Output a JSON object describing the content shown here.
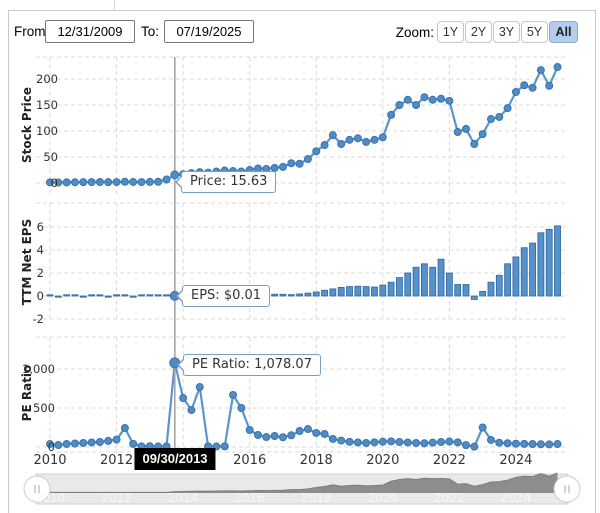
{
  "toolbar": {
    "from_label": "From:",
    "from_value": "12/31/2009",
    "to_label": "To:",
    "to_value": "07/19/2025",
    "zoom_label": "Zoom:",
    "zoom_buttons": [
      {
        "label": "1Y",
        "active": false
      },
      {
        "label": "2Y",
        "active": false
      },
      {
        "label": "3Y",
        "active": false
      },
      {
        "label": "5Y",
        "active": false
      },
      {
        "label": "All",
        "active": true
      }
    ]
  },
  "tooltips": {
    "price": "Price: 15.63",
    "eps": "EPS: $0.01",
    "pe": "PE Ratio: 1,078.07",
    "date": "09/30/2013"
  },
  "highlight": {
    "index": 15,
    "date": "09/30/2013"
  },
  "xaxis": {
    "years": [
      2010,
      2012,
      2014,
      2016,
      2018,
      2020,
      2022,
      2024
    ],
    "year_labels": [
      "2010",
      "2012",
      "2014",
      "2016",
      "2018",
      "2020",
      "2022",
      "2024"
    ],
    "x_range": [
      "12/31/2009",
      "07/19/2025"
    ],
    "frequency": "quarterly"
  },
  "chart_data": [
    {
      "type": "line",
      "ylabel": "Stock Price",
      "ytick_values": [
        0,
        50,
        100,
        150,
        200
      ],
      "ytick_labels": [
        "0",
        "50",
        "100",
        "150",
        "200"
      ],
      "ylim": [
        0,
        242
      ],
      "values": [
        1.3,
        0.9,
        1.2,
        1.4,
        1.7,
        1.8,
        1.9,
        1.6,
        1.8,
        2.3,
        2.0,
        1.8,
        2.1,
        2.4,
        6.7,
        15.63,
        17,
        19,
        21,
        20,
        22,
        24,
        23,
        22,
        25,
        28,
        27,
        29,
        31,
        38,
        37,
        46,
        61,
        73,
        92,
        75,
        83,
        86,
        79,
        83,
        88,
        131,
        150,
        160,
        150,
        165,
        160,
        162,
        158,
        98,
        104,
        75,
        94,
        123,
        127,
        144,
        175,
        188,
        183,
        217,
        187,
        223
      ]
    },
    {
      "type": "bar",
      "ylabel": "TTM Net EPS",
      "ytick_values": [
        -2,
        0,
        2,
        4,
        6
      ],
      "ytick_labels": [
        "-2",
        "0",
        "2",
        "4",
        "6"
      ],
      "ylim": [
        -2.6,
        7.9
      ],
      "values": [
        0.02,
        -0.03,
        0.02,
        0.02,
        -0.03,
        0.02,
        0.03,
        -0.02,
        0.02,
        0.02,
        -0.02,
        0.02,
        0.02,
        0.01,
        0.01,
        0.01,
        0.02,
        0.02,
        0.03,
        0.03,
        0.04,
        0.05,
        0.05,
        0.06,
        0.08,
        0.1,
        0.12,
        0.15,
        0.15,
        0.12,
        0.18,
        0.25,
        0.35,
        0.5,
        0.62,
        0.75,
        0.82,
        0.85,
        0.82,
        0.78,
        0.95,
        1.2,
        1.6,
        2.0,
        2.5,
        2.8,
        2.5,
        3.2,
        2.0,
        1.0,
        1.0,
        -0.3,
        0.4,
        1.2,
        1.8,
        2.8,
        3.4,
        4.2,
        4.6,
        5.5,
        5.8,
        6.1
      ]
    },
    {
      "type": "line",
      "ylabel": "PE Ratio",
      "ytick_values": [
        0,
        500,
        1000
      ],
      "ytick_labels": [
        "0",
        "500",
        "1,000"
      ],
      "ylim": [
        0,
        1410
      ],
      "values": [
        38,
        25,
        38,
        45,
        52,
        58,
        64,
        78,
        95,
        243,
        40,
        8,
        10,
        6,
        8,
        1078.07,
        628,
        474,
        769,
        8,
        6,
        8,
        667,
        500,
        218,
        154,
        128,
        141,
        125,
        150,
        205,
        230,
        180,
        167,
        103,
        82,
        66,
        58,
        52,
        60,
        68,
        72,
        64,
        58,
        52,
        48,
        56,
        64,
        70,
        60,
        24,
        5,
        250,
        90,
        55,
        48,
        42,
        40,
        38,
        35,
        33,
        38
      ]
    }
  ],
  "navigator": {
    "year_labels": [
      "2010",
      "2012",
      "2014",
      "2016",
      "2018",
      "2020",
      "2022",
      "2024"
    ],
    "source": "stock-price-series"
  },
  "colors": {
    "series_blue": "#4f8cc6",
    "series_line": "#5a95cd",
    "marker_stroke": "#3a72ab",
    "bar_fill": "#5591cb",
    "bar_stroke": "#2f659c",
    "grid": "#d9d9d9",
    "crosshair": "#a5a5a5",
    "tooltip_border": "#78a0c2",
    "active_button_bg": "#b4ccee",
    "navigator_area": "#8d8d8d",
    "navigator_track": "#e9e9e9"
  }
}
